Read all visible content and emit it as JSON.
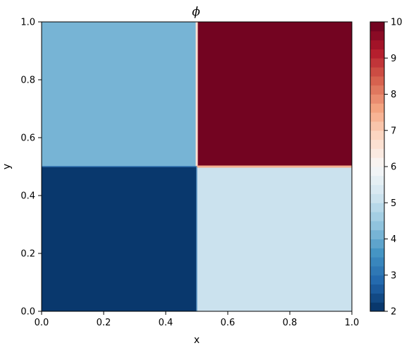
{
  "chart_data": {
    "type": "heatmap",
    "title": "ϕ",
    "xlabel": "x",
    "ylabel": "y",
    "xlim": [
      0.0,
      1.0
    ],
    "ylim": [
      0.0,
      1.0
    ],
    "x_ticks": [
      0.0,
      0.2,
      0.4,
      0.6,
      0.8,
      1.0
    ],
    "y_ticks": [
      0.0,
      0.2,
      0.4,
      0.6,
      0.8,
      1.0
    ],
    "x_tick_labels": [
      "0.0",
      "0.2",
      "0.4",
      "0.6",
      "0.8",
      "1.0"
    ],
    "y_tick_labels": [
      "0.0",
      "0.2",
      "0.4",
      "0.6",
      "0.8",
      "1.0"
    ],
    "regions": [
      {
        "x": [
          0.0,
          0.5
        ],
        "y": [
          0.5,
          1.0
        ],
        "value": 4
      },
      {
        "x": [
          0.5,
          1.0
        ],
        "y": [
          0.5,
          1.0
        ],
        "value": 10
      },
      {
        "x": [
          0.0,
          0.5
        ],
        "y": [
          0.0,
          0.5
        ],
        "value": 2
      },
      {
        "x": [
          0.5,
          1.0
        ],
        "y": [
          0.0,
          0.5
        ],
        "value": 5
      }
    ],
    "colorbar": {
      "colormap": "RdBu_r",
      "range": [
        2,
        10
      ],
      "levels": 32,
      "ticks": [
        2,
        3,
        4,
        5,
        6,
        7,
        8,
        9,
        10
      ],
      "tick_labels": [
        "2",
        "3",
        "4",
        "5",
        "6",
        "7",
        "8",
        "9",
        "10"
      ]
    },
    "grid": false
  }
}
